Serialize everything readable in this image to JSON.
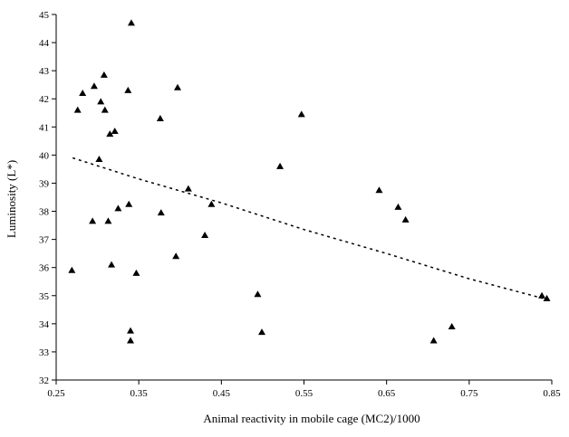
{
  "chart_data": {
    "type": "scatter",
    "title": "",
    "xlabel": "Animal reactivity in mobile cage (MC2)/1000",
    "ylabel": "Luminosity (L*)",
    "xlim": [
      0.25,
      0.85
    ],
    "ylim": [
      32,
      45
    ],
    "xticks": [
      0.25,
      0.35,
      0.45,
      0.55,
      0.65,
      0.75,
      0.85
    ],
    "xtick_labels": [
      "0.25",
      "0.35",
      "0.45",
      "0.55",
      "0.65",
      "0.75",
      "0.85"
    ],
    "yticks": [
      32,
      33,
      34,
      35,
      36,
      37,
      38,
      39,
      40,
      41,
      42,
      43,
      44,
      45
    ],
    "ytick_labels": [
      "32",
      "33",
      "34",
      "35",
      "36",
      "37",
      "38",
      "39",
      "40",
      "41",
      "42",
      "43",
      "44",
      "45"
    ],
    "grid": false,
    "marker": "triangle",
    "marker_color": "#000000",
    "points": [
      {
        "x": 0.269,
        "y": 35.9
      },
      {
        "x": 0.276,
        "y": 41.6
      },
      {
        "x": 0.282,
        "y": 42.2
      },
      {
        "x": 0.294,
        "y": 37.65
      },
      {
        "x": 0.296,
        "y": 42.45
      },
      {
        "x": 0.302,
        "y": 39.85
      },
      {
        "x": 0.304,
        "y": 41.9
      },
      {
        "x": 0.308,
        "y": 42.85
      },
      {
        "x": 0.309,
        "y": 41.6
      },
      {
        "x": 0.313,
        "y": 37.65
      },
      {
        "x": 0.315,
        "y": 40.75
      },
      {
        "x": 0.317,
        "y": 36.1
      },
      {
        "x": 0.321,
        "y": 40.85
      },
      {
        "x": 0.325,
        "y": 38.1
      },
      {
        "x": 0.337,
        "y": 42.3
      },
      {
        "x": 0.338,
        "y": 38.25
      },
      {
        "x": 0.34,
        "y": 33.75
      },
      {
        "x": 0.34,
        "y": 33.4
      },
      {
        "x": 0.341,
        "y": 44.7
      },
      {
        "x": 0.347,
        "y": 35.8
      },
      {
        "x": 0.376,
        "y": 41.3
      },
      {
        "x": 0.377,
        "y": 37.95
      },
      {
        "x": 0.395,
        "y": 36.4
      },
      {
        "x": 0.397,
        "y": 42.4
      },
      {
        "x": 0.41,
        "y": 38.8
      },
      {
        "x": 0.43,
        "y": 37.15
      },
      {
        "x": 0.438,
        "y": 38.25
      },
      {
        "x": 0.494,
        "y": 35.05
      },
      {
        "x": 0.499,
        "y": 33.7
      },
      {
        "x": 0.521,
        "y": 39.6
      },
      {
        "x": 0.547,
        "y": 41.45
      },
      {
        "x": 0.641,
        "y": 38.75
      },
      {
        "x": 0.664,
        "y": 38.15
      },
      {
        "x": 0.673,
        "y": 37.7
      },
      {
        "x": 0.707,
        "y": 33.4
      },
      {
        "x": 0.729,
        "y": 33.9
      },
      {
        "x": 0.838,
        "y": 35.0
      },
      {
        "x": 0.844,
        "y": 34.9
      }
    ],
    "trendline": {
      "style": "dotted",
      "points": [
        {
          "x": 0.27,
          "y": 39.9
        },
        {
          "x": 0.35,
          "y": 39.15
        },
        {
          "x": 0.45,
          "y": 38.3
        },
        {
          "x": 0.55,
          "y": 37.35
        },
        {
          "x": 0.65,
          "y": 36.5
        },
        {
          "x": 0.75,
          "y": 35.6
        },
        {
          "x": 0.84,
          "y": 34.9
        }
      ]
    }
  }
}
